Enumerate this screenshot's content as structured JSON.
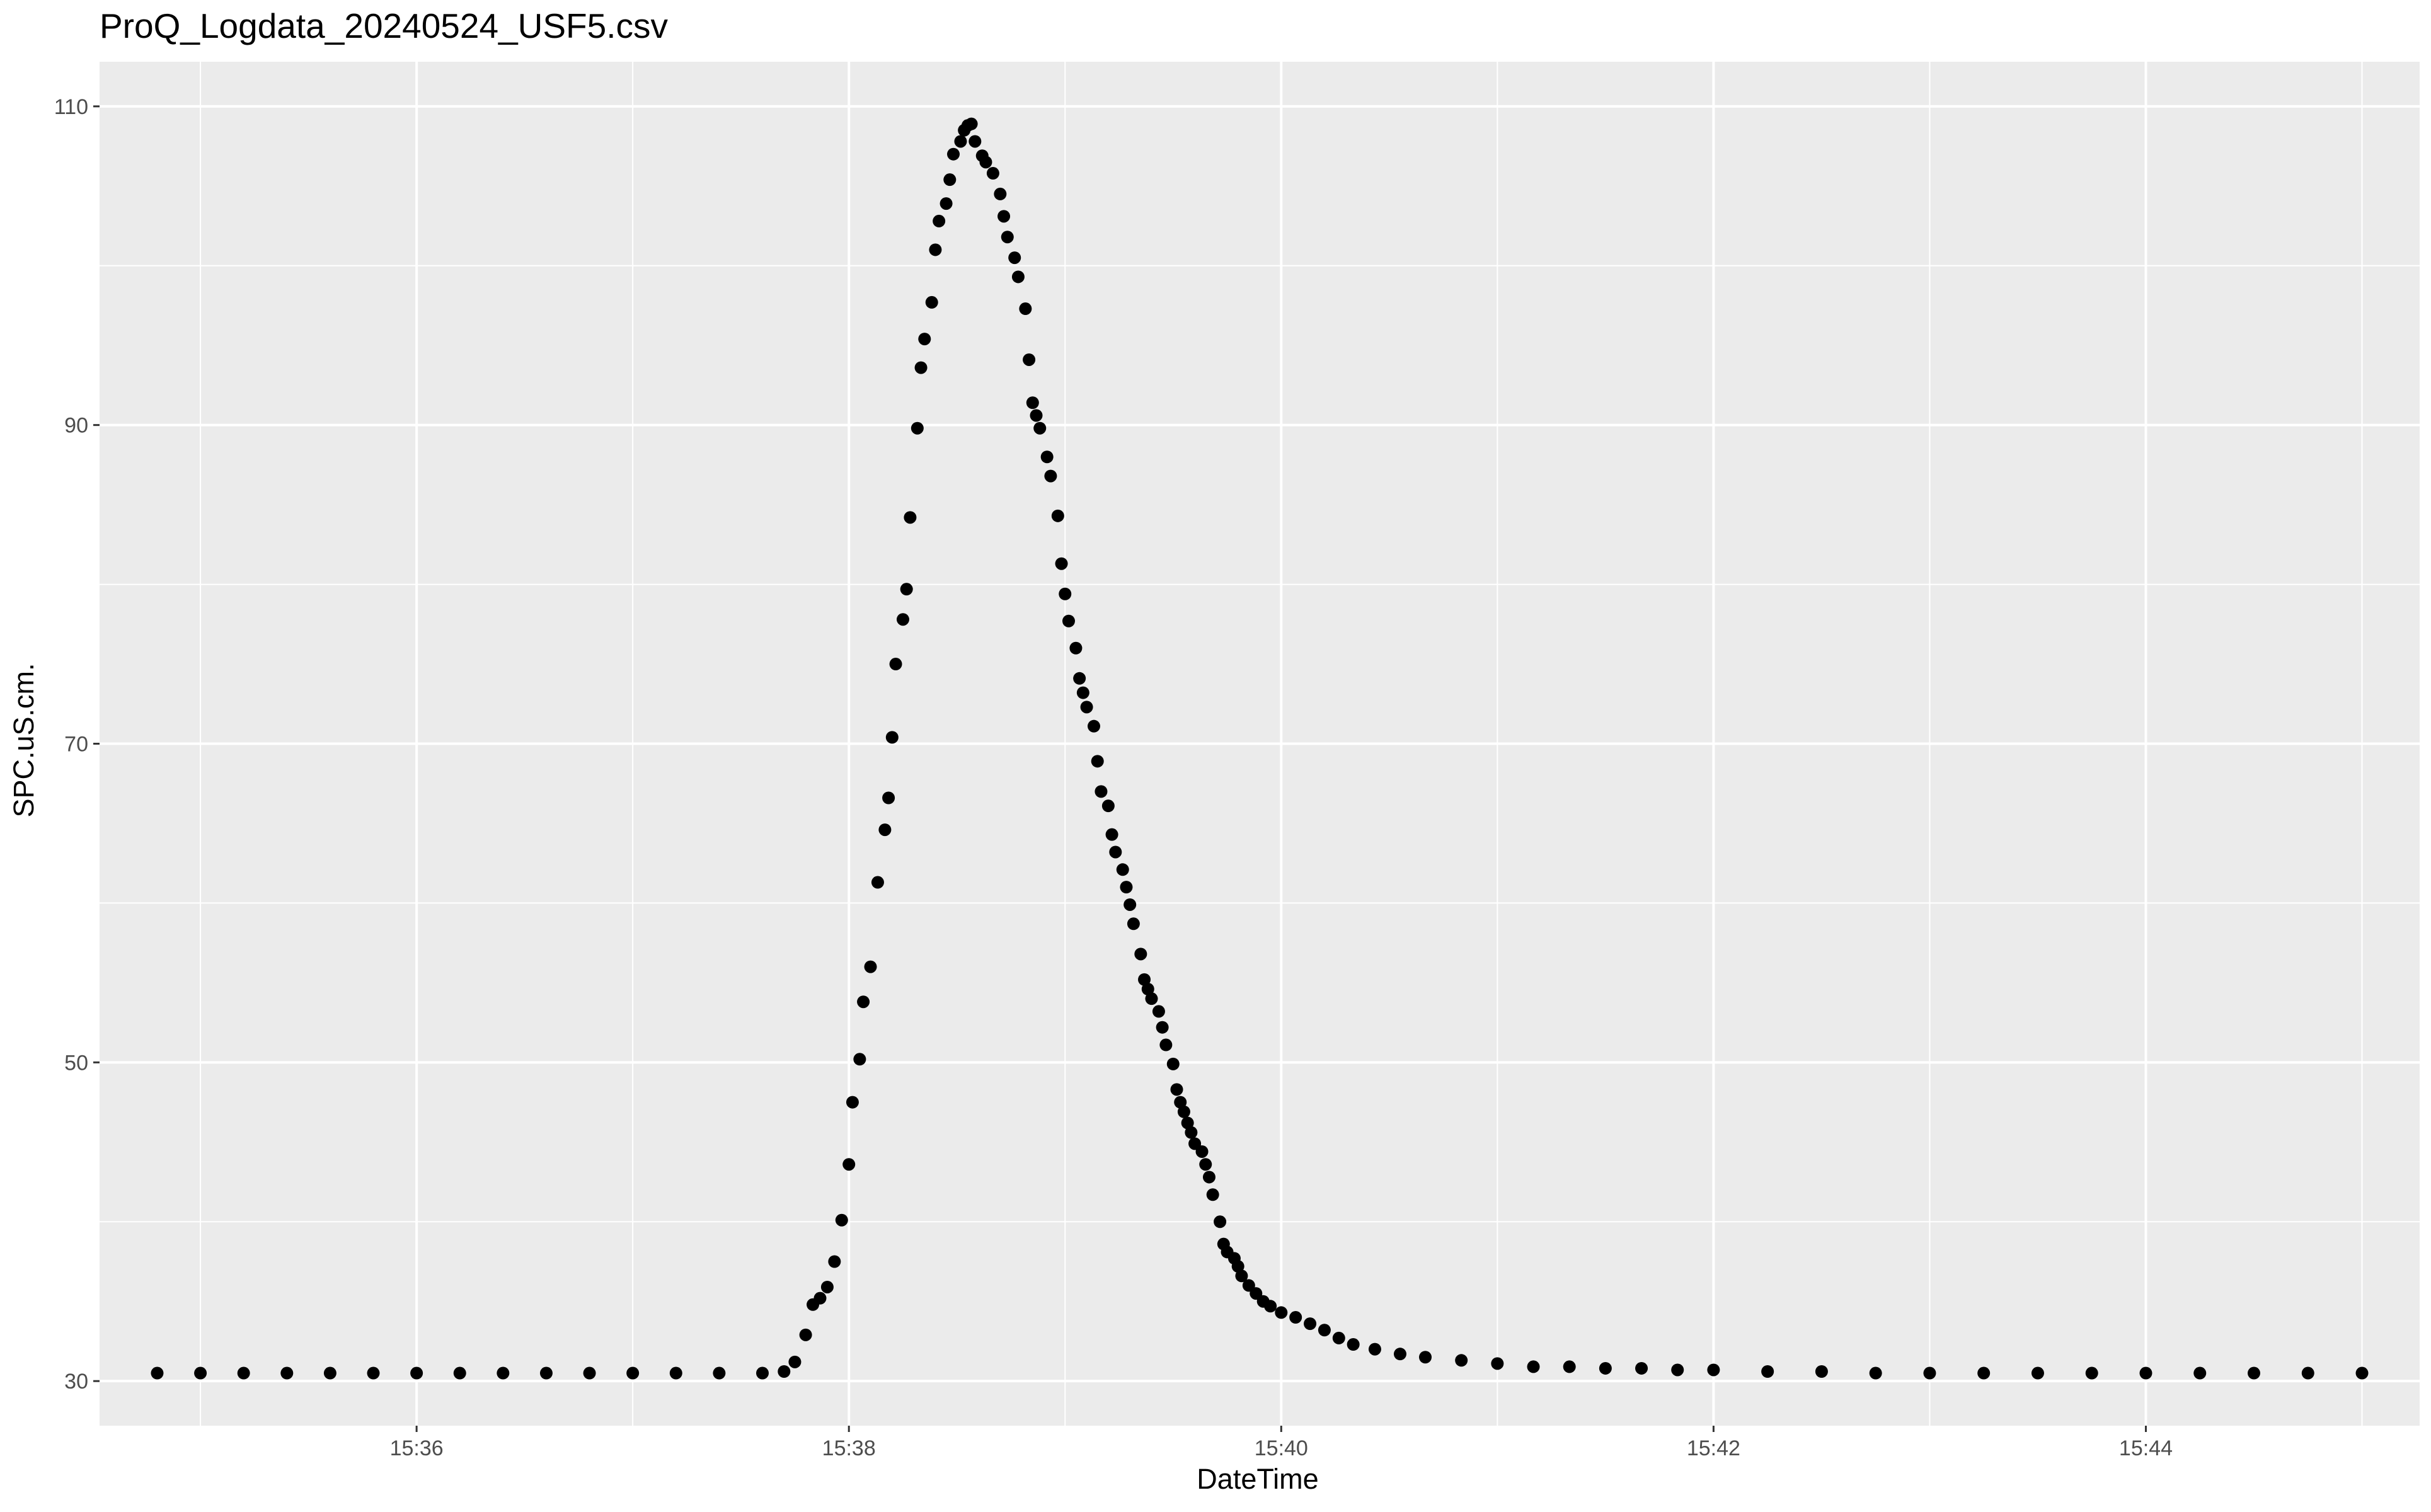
{
  "chart_data": {
    "type": "scatter",
    "title": "ProQ_Logdata_20240524_USF5.csv",
    "xlabel": "DateTime",
    "ylabel": "SPC.uS.cm.",
    "x_unit": "time of day (HH:MM:SS)",
    "xlim": [
      "15:34:32",
      "15:45:16"
    ],
    "ylim": [
      27.2,
      112.8
    ],
    "x_ticks": [
      "15:36",
      "15:38",
      "15:40",
      "15:42",
      "15:44"
    ],
    "y_ticks": [
      30,
      50,
      70,
      90,
      110
    ],
    "grid": true,
    "panel_background": "#EBEBEB",
    "grid_color": "#FFFFFF",
    "point_color": "#000000",
    "series": [
      {
        "points": [
          [
            "15:34:48",
            30.5
          ],
          [
            "15:35:00",
            30.5
          ],
          [
            "15:35:12",
            30.5
          ],
          [
            "15:35:24",
            30.5
          ],
          [
            "15:35:36",
            30.5
          ],
          [
            "15:35:48",
            30.5
          ],
          [
            "15:36:00",
            30.5
          ],
          [
            "15:36:12",
            30.5
          ],
          [
            "15:36:24",
            30.5
          ],
          [
            "15:36:36",
            30.5
          ],
          [
            "15:36:48",
            30.5
          ],
          [
            "15:37:00",
            30.5
          ],
          [
            "15:37:12",
            30.5
          ],
          [
            "15:37:24",
            30.5
          ],
          [
            "15:37:36",
            30.5
          ],
          [
            "15:37:42",
            30.6
          ],
          [
            "15:37:45",
            31.2
          ],
          [
            "15:37:48",
            32.9
          ],
          [
            "15:37:50",
            34.8
          ],
          [
            "15:37:52",
            35.2
          ],
          [
            "15:37:54",
            35.9
          ],
          [
            "15:37:56",
            37.5
          ],
          [
            "15:37:58",
            40.1
          ],
          [
            "15:38:00",
            43.6
          ],
          [
            "15:38:01",
            47.5
          ],
          [
            "15:38:03",
            50.2
          ],
          [
            "15:38:04",
            53.8
          ],
          [
            "15:38:06",
            56.0
          ],
          [
            "15:38:08",
            61.3
          ],
          [
            "15:38:10",
            64.6
          ],
          [
            "15:38:11",
            66.6
          ],
          [
            "15:38:12",
            70.4
          ],
          [
            "15:38:13",
            75.0
          ],
          [
            "15:38:15",
            77.8
          ],
          [
            "15:38:16",
            79.7
          ],
          [
            "15:38:17",
            84.2
          ],
          [
            "15:38:19",
            89.8
          ],
          [
            "15:38:20",
            93.6
          ],
          [
            "15:38:21",
            95.4
          ],
          [
            "15:38:23",
            97.7
          ],
          [
            "15:38:24",
            101.0
          ],
          [
            "15:38:25",
            102.8
          ],
          [
            "15:38:27",
            103.9
          ],
          [
            "15:38:28",
            105.4
          ],
          [
            "15:38:29",
            107.0
          ],
          [
            "15:38:31",
            107.8
          ],
          [
            "15:38:32",
            108.5
          ],
          [
            "15:38:33",
            108.8
          ],
          [
            "15:38:34",
            108.9
          ],
          [
            "15:38:35",
            107.8
          ],
          [
            "15:38:37",
            106.9
          ],
          [
            "15:38:38",
            106.5
          ],
          [
            "15:38:40",
            105.8
          ],
          [
            "15:38:42",
            104.5
          ],
          [
            "15:38:43",
            103.1
          ],
          [
            "15:38:44",
            101.8
          ],
          [
            "15:38:46",
            100.5
          ],
          [
            "15:38:47",
            99.3
          ],
          [
            "15:38:49",
            97.3
          ],
          [
            "15:38:50",
            94.1
          ],
          [
            "15:38:51",
            91.4
          ],
          [
            "15:38:52",
            90.6
          ],
          [
            "15:38:53",
            89.8
          ],
          [
            "15:38:55",
            88.0
          ],
          [
            "15:38:56",
            86.8
          ],
          [
            "15:38:58",
            84.3
          ],
          [
            "15:38:59",
            81.3
          ],
          [
            "15:39:00",
            79.4
          ],
          [
            "15:39:01",
            77.7
          ],
          [
            "15:39:03",
            76.0
          ],
          [
            "15:39:04",
            74.1
          ],
          [
            "15:39:05",
            73.2
          ],
          [
            "15:39:06",
            72.3
          ],
          [
            "15:39:08",
            71.1
          ],
          [
            "15:39:09",
            68.9
          ],
          [
            "15:39:10",
            67.0
          ],
          [
            "15:39:12",
            66.1
          ],
          [
            "15:39:13",
            64.3
          ],
          [
            "15:39:14",
            63.2
          ],
          [
            "15:39:16",
            62.1
          ],
          [
            "15:39:17",
            61.0
          ],
          [
            "15:39:18",
            59.9
          ],
          [
            "15:39:19",
            58.7
          ],
          [
            "15:39:21",
            56.8
          ],
          [
            "15:39:22",
            55.2
          ],
          [
            "15:39:23",
            54.6
          ],
          [
            "15:39:24",
            54.0
          ],
          [
            "15:39:26",
            53.2
          ],
          [
            "15:39:27",
            52.2
          ],
          [
            "15:39:28",
            51.1
          ],
          [
            "15:39:30",
            49.9
          ],
          [
            "15:39:31",
            48.3
          ],
          [
            "15:39:32",
            47.5
          ],
          [
            "15:39:33",
            46.9
          ],
          [
            "15:39:34",
            46.2
          ],
          [
            "15:39:35",
            45.6
          ],
          [
            "15:39:36",
            44.9
          ],
          [
            "15:39:38",
            44.4
          ],
          [
            "15:39:39",
            43.6
          ],
          [
            "15:39:40",
            42.8
          ],
          [
            "15:39:41",
            41.7
          ],
          [
            "15:39:43",
            40.0
          ],
          [
            "15:39:44",
            38.6
          ],
          [
            "15:39:45",
            38.1
          ],
          [
            "15:39:47",
            37.7
          ],
          [
            "15:39:48",
            37.2
          ],
          [
            "15:39:49",
            36.6
          ],
          [
            "15:39:51",
            36.0
          ],
          [
            "15:39:53",
            35.5
          ],
          [
            "15:39:55",
            35.0
          ],
          [
            "15:39:57",
            34.7
          ],
          [
            "15:40:00",
            34.3
          ],
          [
            "15:40:04",
            34.0
          ],
          [
            "15:40:08",
            33.6
          ],
          [
            "15:40:12",
            33.2
          ],
          [
            "15:40:16",
            32.7
          ],
          [
            "15:40:20",
            32.3
          ],
          [
            "15:40:26",
            32.0
          ],
          [
            "15:40:33",
            31.7
          ],
          [
            "15:40:40",
            31.5
          ],
          [
            "15:40:50",
            31.3
          ],
          [
            "15:41:00",
            31.1
          ],
          [
            "15:41:10",
            30.9
          ],
          [
            "15:41:20",
            30.9
          ],
          [
            "15:41:30",
            30.8
          ],
          [
            "15:41:40",
            30.8
          ],
          [
            "15:41:50",
            30.7
          ],
          [
            "15:42:00",
            30.7
          ],
          [
            "15:42:15",
            30.6
          ],
          [
            "15:42:30",
            30.6
          ],
          [
            "15:42:45",
            30.5
          ],
          [
            "15:43:00",
            30.5
          ],
          [
            "15:43:15",
            30.5
          ],
          [
            "15:43:30",
            30.5
          ],
          [
            "15:43:45",
            30.5
          ],
          [
            "15:44:00",
            30.5
          ],
          [
            "15:44:15",
            30.5
          ],
          [
            "15:44:30",
            30.5
          ],
          [
            "15:44:45",
            30.5
          ],
          [
            "15:45:00",
            30.5
          ]
        ]
      }
    ]
  }
}
